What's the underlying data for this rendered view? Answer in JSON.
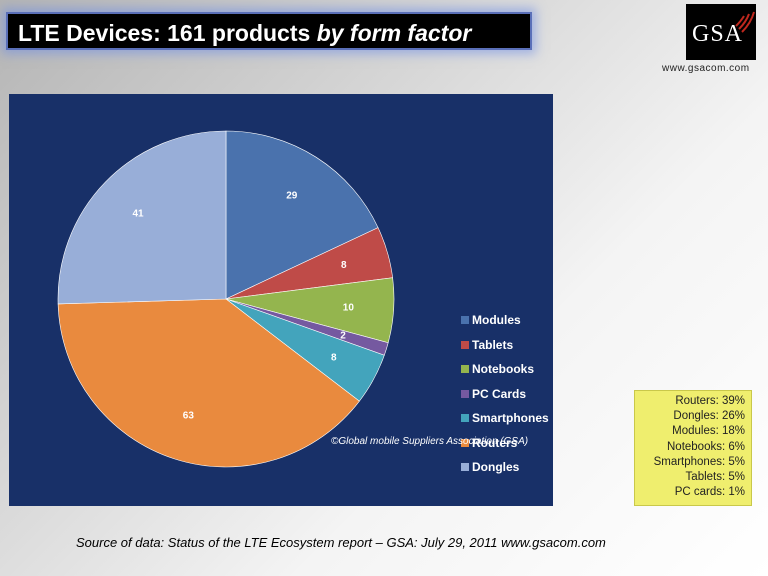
{
  "title": {
    "main": "LTE Devices: 161 products ",
    "emphasis": "by form factor"
  },
  "logo": {
    "text": "GSA"
  },
  "website": "www.gsacom.com",
  "copyright": "©Global mobile Suppliers Association (GSA)",
  "percent_box": [
    "Routers: 39%",
    "Dongles: 26%",
    "Modules: 18%",
    "Notebooks: 6%",
    "Smartphones: 5%",
    "Tablets: 5%",
    "PC cards: 1%"
  ],
  "source": "Source of data: Status of the LTE Ecosystem report – GSA: July 29, 2011    www.gsacom.com",
  "chart_data": {
    "type": "pie",
    "title": "LTE Devices: 161 products by form factor",
    "legend_position": "right",
    "start_angle_deg": 90,
    "direction": "clockwise",
    "slices": [
      {
        "label": "Modules",
        "value": 29,
        "color": "#4a72ad"
      },
      {
        "label": "Tablets",
        "value": 8,
        "color": "#bf4b48"
      },
      {
        "label": "Notebooks",
        "value": 10,
        "color": "#94b54e"
      },
      {
        "label": "PC Cards",
        "value": 2,
        "color": "#7559a0"
      },
      {
        "label": "Smartphones",
        "value": 8,
        "color": "#43a4bc"
      },
      {
        "label": "Routers",
        "value": 63,
        "color": "#e98a3e"
      },
      {
        "label": "Dongles",
        "value": 41,
        "color": "#98aed8"
      }
    ],
    "total": 161
  }
}
